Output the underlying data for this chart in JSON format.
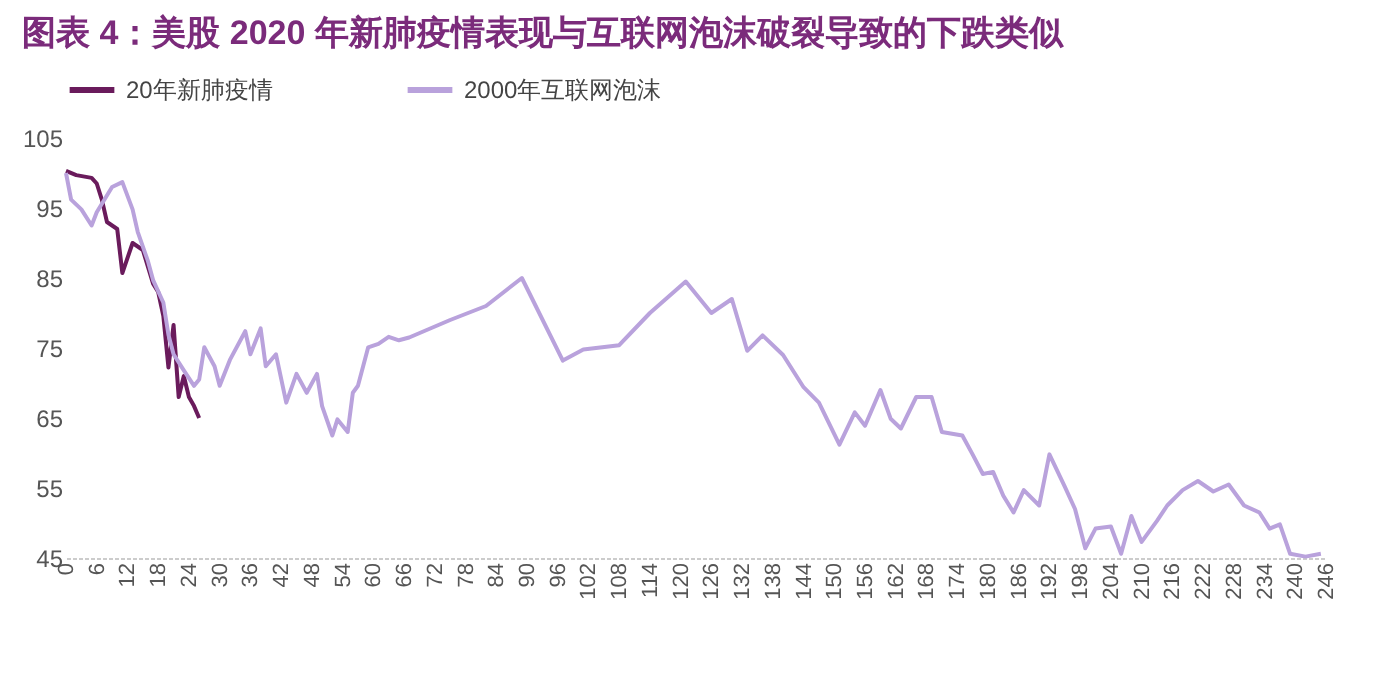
{
  "chart_data": {
    "type": "line",
    "title": "图表 4：美股 2020 年新肺疫情表现与互联网泡沫破裂导致的下跌类似",
    "legend": "top",
    "xlim": [
      0,
      246
    ],
    "xticks": [
      0,
      6,
      12,
      18,
      24,
      30,
      36,
      42,
      48,
      54,
      60,
      66,
      72,
      78,
      84,
      90,
      96,
      102,
      108,
      114,
      120,
      126,
      132,
      138,
      144,
      150,
      156,
      162,
      168,
      174,
      180,
      186,
      192,
      198,
      204,
      210,
      216,
      222,
      228,
      234,
      240,
      246
    ],
    "ylim": [
      45,
      105
    ],
    "yticks": [
      45,
      55,
      65,
      75,
      85,
      95,
      105
    ],
    "series": [
      {
        "name": "20年新肺疫情",
        "color": "#6a1b5c",
        "x": [
          0,
          2,
          5,
          6,
          7,
          8,
          10,
          11,
          13,
          15,
          17,
          18,
          19,
          20,
          21,
          22,
          23,
          24,
          25,
          26
        ],
        "values": [
          100.3,
          99.7,
          99.3,
          98.5,
          96.2,
          93,
          92,
          85.7,
          90,
          89,
          84.2,
          83,
          79.6,
          72.2,
          78.3,
          68,
          71,
          68,
          66.7,
          65
        ]
      },
      {
        "name": "2000年互联网泡沫",
        "color": "#b9a2dc",
        "x": [
          0,
          1,
          3,
          5,
          6,
          9,
          11,
          13,
          14,
          16,
          17,
          19,
          20,
          21,
          23,
          25,
          26,
          27,
          29,
          30,
          32,
          35,
          36,
          38,
          39,
          41,
          43,
          45,
          47,
          49,
          50,
          52,
          53,
          55,
          56,
          57,
          59,
          61,
          63,
          65,
          67,
          75,
          82,
          89,
          97,
          101,
          108,
          114,
          121,
          126,
          130,
          133,
          136,
          140,
          144,
          147,
          151,
          154,
          156,
          159,
          161,
          163,
          166,
          169,
          171,
          175,
          177,
          179,
          181,
          183,
          185,
          187,
          190,
          192,
          195,
          197,
          199,
          201,
          204,
          206,
          208,
          210,
          213,
          215,
          218,
          221,
          224,
          227,
          230,
          233,
          235,
          237,
          239,
          242,
          245
        ],
        "values": [
          100,
          96.2,
          94.8,
          92.5,
          94.4,
          98,
          98.7,
          94.8,
          91.6,
          87.4,
          84.7,
          81.5,
          76.9,
          74.1,
          71.8,
          69.6,
          70.5,
          75.1,
          72.4,
          69.6,
          73.3,
          77.4,
          74.1,
          77.8,
          72.4,
          74.1,
          67.2,
          71.3,
          68.6,
          71.3,
          66.7,
          62.5,
          64.8,
          63,
          68.6,
          69.6,
          75.1,
          75.6,
          76.6,
          76.1,
          76.5,
          79,
          81,
          85,
          73.2,
          74.8,
          75.4,
          80,
          84.5,
          80,
          82,
          74.6,
          76.8,
          74,
          69.4,
          67.2,
          61.2,
          65.8,
          63.9,
          69,
          64.9,
          63.5,
          68,
          68,
          63,
          62.5,
          59.8,
          57,
          57.3,
          53.9,
          51.5,
          54.7,
          52.5,
          59.8,
          55.2,
          52,
          46.4,
          49.2,
          49.5,
          45.6,
          51,
          47.3,
          50.3,
          52.5,
          54.7,
          56,
          54.5,
          55.5,
          52.5,
          51.5,
          49.2,
          49.8,
          45.6,
          45.2,
          45.6
        ]
      }
    ]
  }
}
